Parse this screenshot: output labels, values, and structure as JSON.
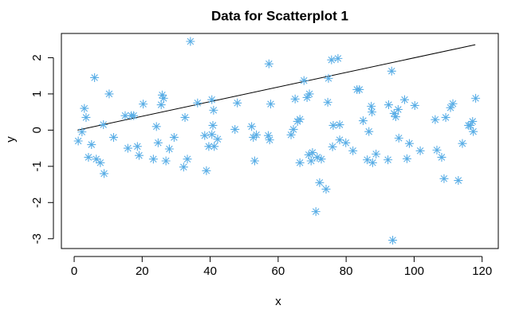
{
  "chart_data": {
    "type": "scatter",
    "title": "Data for Scatterplot 1",
    "x_label": "x",
    "y_label": "y",
    "color": "#5aaee6",
    "marker": "asterisk",
    "x": [
      1.2,
      2.3,
      3,
      3.5,
      4.2,
      5.1,
      6,
      6.5,
      7.7,
      8.6,
      8.8,
      10.3,
      11.6,
      15,
      15.8,
      16.8,
      17.5,
      18.6,
      19.1,
      20.3,
      23.3,
      24.2,
      24.7,
      25.6,
      25.9,
      26.3,
      27,
      28,
      29.4,
      32.2,
      32.6,
      33.3,
      34.2,
      36.3,
      38.4,
      38.9,
      39.6,
      40.5,
      40.8,
      41,
      40.5,
      41.2,
      42.2,
      48,
      47.3,
      52.2,
      52.7,
      53.1,
      53.6,
      57.1,
      57.3,
      57.8,
      57.5,
      63.8,
      64.5,
      65,
      65.7,
      66.4,
      66.4,
      67.6,
      68.5,
      69,
      69.2,
      69.7,
      70.1,
      71.1,
      71.5,
      72.2,
      72.7,
      74.1,
      74.8,
      74.6,
      75.7,
      76,
      76.2,
      77.6,
      78.1,
      78.1,
      79.9,
      82,
      83.2,
      83.9,
      85,
      86.2,
      86.7,
      87.4,
      87.6,
      87.8,
      88.8,
      92.3,
      92.5,
      93.4,
      93.7,
      94.1,
      94.6,
      95.3,
      95.5,
      97.2,
      97.9,
      98.6,
      100.2,
      101.8,
      106.2,
      106.7,
      108.1,
      108.8,
      109.3,
      110.7,
      111.4,
      113,
      114.2,
      116,
      116.5,
      117.2,
      117.4,
      118.1
    ],
    "y": [
      -0.3,
      -0.05,
      0.6,
      0.35,
      -0.75,
      -0.4,
      1.45,
      -0.8,
      -0.9,
      0.15,
      -1.2,
      1.0,
      -0.2,
      0.4,
      -0.5,
      0.4,
      0.4,
      -0.45,
      -0.7,
      0.72,
      -0.8,
      0.1,
      -0.35,
      0.7,
      0.97,
      0.88,
      -0.85,
      -0.52,
      -0.2,
      -1.02,
      0.35,
      -0.8,
      2.45,
      0.75,
      -0.15,
      -1.12,
      -0.45,
      -0.12,
      0.13,
      0.55,
      0.84,
      -0.45,
      -0.25,
      0.75,
      0.02,
      0.1,
      -0.2,
      -0.85,
      -0.13,
      -0.15,
      1.83,
      0.72,
      -0.27,
      -0.13,
      0.02,
      0.86,
      0.24,
      0.3,
      -0.9,
      1.37,
      0.9,
      -0.68,
      1.0,
      -0.85,
      -0.62,
      -2.25,
      -0.75,
      -1.45,
      -0.8,
      -1.63,
      1.43,
      0.77,
      1.94,
      -0.46,
      0.13,
      1.98,
      0.15,
      -0.27,
      -0.35,
      -0.57,
      1.12,
      1.12,
      0.26,
      -0.82,
      -0.04,
      0.66,
      0.5,
      -0.9,
      -0.66,
      -0.82,
      0.7,
      1.63,
      -3.04,
      0.46,
      0.37,
      0.57,
      -0.22,
      0.84,
      -0.79,
      -0.37,
      0.68,
      -0.57,
      0.29,
      -0.55,
      -0.75,
      -1.34,
      0.35,
      0.62,
      0.73,
      -1.39,
      -0.37,
      0.13,
      0.13,
      0.24,
      -0.04,
      0.88
    ],
    "line": {
      "x": [
        1,
        118
      ],
      "y": [
        0,
        2.36
      ],
      "color": "#000000"
    },
    "xlim": [
      -3.76,
      124.76
    ],
    "ylim": [
      -3.27,
      2.67
    ],
    "xticks": [
      0,
      20,
      40,
      60,
      80,
      100,
      120
    ],
    "yticks": [
      -3,
      -2,
      -1,
      0,
      1,
      2
    ]
  }
}
